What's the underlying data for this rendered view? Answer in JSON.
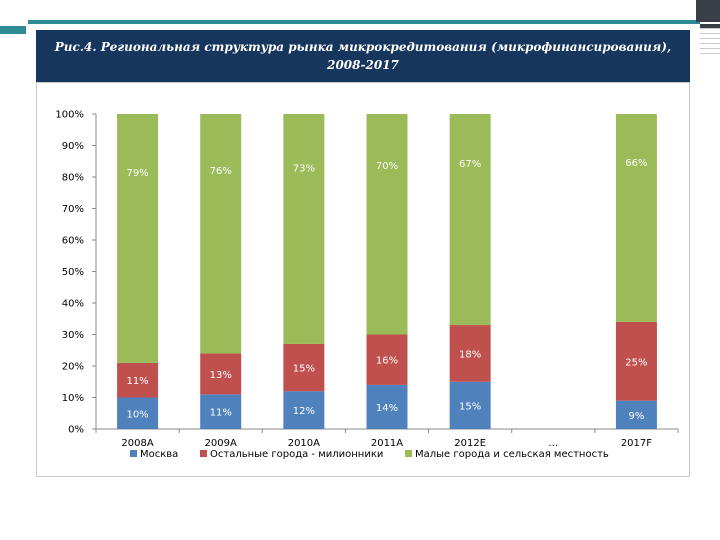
{
  "header": {
    "line1": "Рис.4. Региональная структура рынка микрокредитования (микрофинансирования),",
    "line2": "2008-2017"
  },
  "colors": {
    "header_bg": "#17365d",
    "moscow": "#4f81bd",
    "cities": "#c0504d",
    "small": "#9bbb59"
  },
  "chart_data": {
    "type": "bar",
    "stacked": true,
    "percent_scale": true,
    "categories": [
      "2008A",
      "2009A",
      "2010A",
      "2011A",
      "2012E",
      "…",
      "2017F"
    ],
    "series": [
      {
        "name": "Москва",
        "color": "#4f81bd",
        "values": [
          10,
          11,
          12,
          14,
          15,
          null,
          9
        ],
        "labels": [
          "10%",
          "11%",
          "12%",
          "14%",
          "15%",
          "",
          "9%"
        ]
      },
      {
        "name": "Остальные города - милионники",
        "color": "#c0504d",
        "values": [
          11,
          13,
          15,
          16,
          18,
          null,
          25
        ],
        "labels": [
          "11%",
          "13%",
          "15%",
          "16%",
          "18%",
          "",
          "25%"
        ]
      },
      {
        "name": "Малые города и сельская местность",
        "color": "#9bbb59",
        "values": [
          79,
          76,
          73,
          70,
          67,
          null,
          66
        ],
        "labels": [
          "79%",
          "76%",
          "73%",
          "70%",
          "67%",
          "",
          "66%"
        ]
      }
    ],
    "ylim": [
      0,
      100
    ],
    "yticks": [
      "0%",
      "10%",
      "20%",
      "30%",
      "40%",
      "50%",
      "60%",
      "70%",
      "80%",
      "90%",
      "100%"
    ],
    "legend_position": "bottom"
  }
}
